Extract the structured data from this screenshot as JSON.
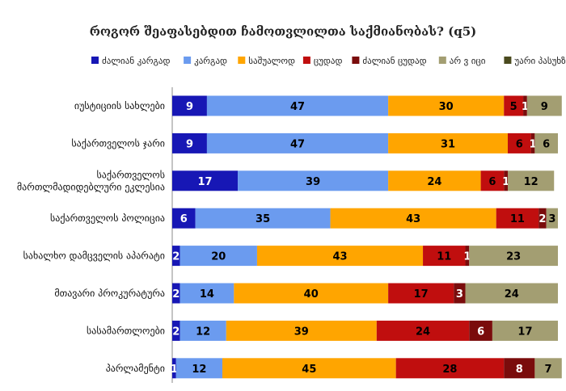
{
  "chart_data": {
    "type": "bar",
    "orientation": "horizontal",
    "stacked": true,
    "title": "როგორ შეაფასებდით ჩამოთვლილთა საქმიანობას? (q5)",
    "xlim": [
      0,
      100
    ],
    "legend_position": "top",
    "categories": [
      "იუსტიციის სახლები",
      "საქართველოს ჯარი",
      "საქართველოს მართლმადიდებლური ეკლესია",
      "საქართველოს პოლიცია",
      "სახალხო დამცველის აპარატი",
      "მთავარი პროკურატურა",
      "სასამართლოები",
      "პარლამენტი"
    ],
    "category_lines": [
      [
        "იუსტიციის სახლები"
      ],
      [
        "საქართველოს ჯარი"
      ],
      [
        "საქართველოს",
        "მართლმადიდებლური ეკლესია"
      ],
      [
        "საქართველოს პოლიცია"
      ],
      [
        "სახალხო დამცველის აპარატი"
      ],
      [
        "მთავარი პროკურატურა"
      ],
      [
        "სასამართლოები"
      ],
      [
        "პარლამენტი"
      ]
    ],
    "series": [
      {
        "name": "ძალიან კარგად",
        "color": "#1717b5",
        "values": [
          9,
          9,
          17,
          6,
          2,
          2,
          2,
          1
        ]
      },
      {
        "name": "კარგად",
        "color": "#6b9bef",
        "values": [
          47,
          47,
          39,
          35,
          20,
          14,
          12,
          12
        ]
      },
      {
        "name": "საშუალოდ",
        "color": "#ffa500",
        "values": [
          30,
          31,
          24,
          43,
          43,
          40,
          39,
          45
        ]
      },
      {
        "name": "ცუდად",
        "color": "#c00e0e",
        "values": [
          5,
          6,
          6,
          11,
          11,
          17,
          24,
          28
        ]
      },
      {
        "name": "ძალიან ცუდად",
        "color": "#7a0c0c",
        "values": [
          1,
          1,
          1,
          2,
          1,
          3,
          6,
          8
        ]
      },
      {
        "name": "არ ვ იცი",
        "color": "#a39e72",
        "values": [
          9,
          6,
          12,
          3,
          23,
          24,
          17,
          7
        ]
      },
      {
        "name": "უარი პასუხზე",
        "color": "#4a4a1e",
        "values": [
          0,
          0,
          0,
          0,
          0,
          0,
          0,
          0
        ]
      }
    ],
    "label_colors": [
      "#ffffff",
      "#000000",
      "#000000",
      "#000000",
      "#ffffff",
      "#000000",
      "#ffffff"
    ]
  }
}
